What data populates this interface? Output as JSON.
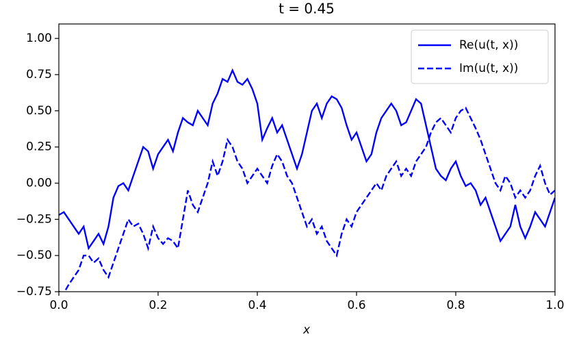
{
  "chart_data": {
    "type": "line",
    "title": "t = 0.45",
    "xlabel": "x",
    "x": [
      0,
      0.01,
      0.02,
      0.03,
      0.04,
      0.05,
      0.06,
      0.07,
      0.08,
      0.09,
      0.1,
      0.11,
      0.12,
      0.13,
      0.14,
      0.15,
      0.16,
      0.17,
      0.18,
      0.19,
      0.2,
      0.21,
      0.22,
      0.23,
      0.24,
      0.25,
      0.26,
      0.27,
      0.28,
      0.29,
      0.3,
      0.31,
      0.32,
      0.33,
      0.34,
      0.35,
      0.36,
      0.37,
      0.38,
      0.39,
      0.4,
      0.41,
      0.42,
      0.43,
      0.44,
      0.45,
      0.46,
      0.47,
      0.48,
      0.49,
      0.5,
      0.51,
      0.52,
      0.53,
      0.54,
      0.55,
      0.56,
      0.57,
      0.58,
      0.59,
      0.6,
      0.61,
      0.62,
      0.63,
      0.64,
      0.65,
      0.66,
      0.67,
      0.68,
      0.69,
      0.7,
      0.71,
      0.72,
      0.73,
      0.74,
      0.75,
      0.76,
      0.77,
      0.78,
      0.79,
      0.8,
      0.81,
      0.82,
      0.83,
      0.84,
      0.85,
      0.86,
      0.87,
      0.88,
      0.89,
      0.9,
      0.91,
      0.92,
      0.93,
      0.94,
      0.95,
      0.96,
      0.97,
      0.98,
      0.99,
      1
    ],
    "series": [
      {
        "name": "Re(u(t, x))",
        "color": "#0000ff",
        "linestyle": "solid",
        "values": [
          -0.22,
          -0.2,
          -0.25,
          -0.3,
          -0.35,
          -0.3,
          -0.45,
          -0.4,
          -0.35,
          -0.42,
          -0.3,
          -0.1,
          -0.02,
          0.0,
          -0.05,
          0.05,
          0.15,
          0.25,
          0.22,
          0.1,
          0.2,
          0.25,
          0.3,
          0.22,
          0.35,
          0.45,
          0.42,
          0.4,
          0.5,
          0.45,
          0.4,
          0.55,
          0.62,
          0.72,
          0.7,
          0.78,
          0.7,
          0.68,
          0.72,
          0.65,
          0.55,
          0.3,
          0.38,
          0.45,
          0.35,
          0.4,
          0.3,
          0.2,
          0.1,
          0.2,
          0.35,
          0.5,
          0.55,
          0.45,
          0.55,
          0.6,
          0.58,
          0.52,
          0.4,
          0.3,
          0.35,
          0.25,
          0.15,
          0.2,
          0.35,
          0.45,
          0.5,
          0.55,
          0.5,
          0.4,
          0.42,
          0.5,
          0.58,
          0.55,
          0.4,
          0.25,
          0.1,
          0.05,
          0.02,
          0.1,
          0.15,
          0.05,
          -0.02,
          0.0,
          -0.05,
          -0.15,
          -0.1,
          -0.2,
          -0.3,
          -0.4,
          -0.35,
          -0.3,
          -0.15,
          -0.3,
          -0.38,
          -0.3,
          -0.2,
          -0.25,
          -0.3,
          -0.2,
          -0.1
        ]
      },
      {
        "name": "Im(u(t, x))",
        "color": "#0000ff",
        "linestyle": "dashed",
        "values": [
          -0.75,
          -0.76,
          -0.7,
          -0.65,
          -0.6,
          -0.5,
          -0.5,
          -0.55,
          -0.52,
          -0.6,
          -0.65,
          -0.55,
          -0.45,
          -0.35,
          -0.25,
          -0.3,
          -0.28,
          -0.35,
          -0.45,
          -0.3,
          -0.38,
          -0.42,
          -0.38,
          -0.4,
          -0.45,
          -0.25,
          -0.05,
          -0.15,
          -0.2,
          -0.1,
          0.0,
          0.15,
          0.05,
          0.15,
          0.3,
          0.25,
          0.15,
          0.1,
          0.0,
          0.05,
          0.1,
          0.05,
          0.0,
          0.12,
          0.2,
          0.15,
          0.05,
          0.0,
          -0.1,
          -0.2,
          -0.3,
          -0.25,
          -0.35,
          -0.3,
          -0.4,
          -0.45,
          -0.5,
          -0.35,
          -0.25,
          -0.3,
          -0.2,
          -0.15,
          -0.1,
          -0.05,
          0.0,
          -0.05,
          0.05,
          0.1,
          0.15,
          0.05,
          0.1,
          0.05,
          0.15,
          0.2,
          0.25,
          0.35,
          0.42,
          0.45,
          0.4,
          0.35,
          0.45,
          0.5,
          0.52,
          0.45,
          0.38,
          0.3,
          0.2,
          0.1,
          0.0,
          -0.05,
          0.05,
          0.0,
          -0.1,
          -0.05,
          -0.1,
          -0.05,
          0.05,
          0.12,
          0.0,
          -0.08,
          -0.05
        ]
      }
    ],
    "xlim": [
      0,
      1
    ],
    "xticks": [
      {
        "value": 0,
        "label": "0.0"
      },
      0.2,
      0.4,
      0.6,
      0.8,
      {
        "value": 1,
        "label": "1.0"
      }
    ],
    "ylim": [
      -0.75,
      1.1
    ],
    "yticks": [
      {
        "value": -0.75,
        "label": "−0.75"
      },
      {
        "value": -0.5,
        "label": "−0.50"
      },
      {
        "value": -0.25,
        "label": "−0.25"
      },
      {
        "value": 0,
        "label": "0.00"
      },
      0.25,
      {
        "value": 0.5,
        "label": "0.50"
      },
      0.75,
      {
        "value": 1,
        "label": "1.00"
      }
    ],
    "legend": "upper right"
  }
}
